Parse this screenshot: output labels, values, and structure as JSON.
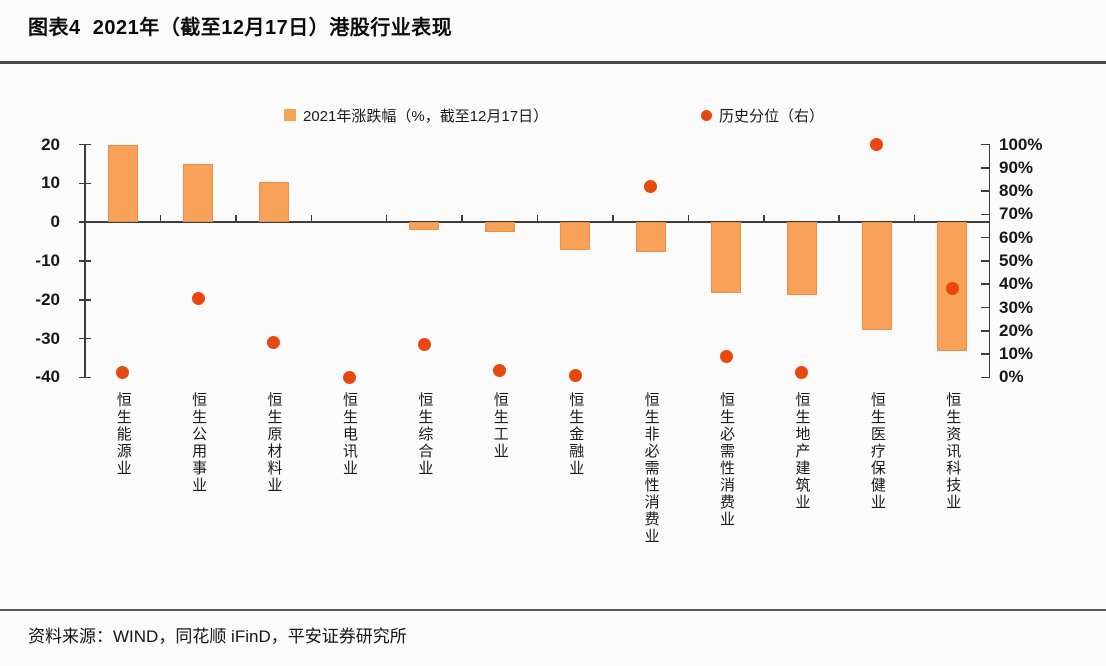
{
  "title": "图表4  2021年（截至12月17日）港股行业表现",
  "source": "资料来源：WIND，同花顺 iFinD，平安证券研究所",
  "chart_data": {
    "type": "bar",
    "subtype": "bar + scatter, dual y-axis",
    "title": "2021年（截至12月17日）港股行业表现",
    "categories": [
      "恒生能源业",
      "恒生公用事业",
      "恒生原材料业",
      "恒生电讯业",
      "恒生综合业",
      "恒生工业",
      "恒生金融业",
      "恒生非必需性消费业",
      "恒生必需性消费业",
      "恒生地产建筑业",
      "恒生医疗保健业",
      "恒生资讯科技业"
    ],
    "series": [
      {
        "name": "2021年涨跌幅（%，截至12月17日）",
        "type": "bar",
        "axis": "left",
        "values": [
          20,
          15,
          10.3,
          0,
          -2,
          -2.6,
          -7.2,
          -7.6,
          -18.2,
          -18.9,
          -27.7,
          -33.3
        ]
      },
      {
        "name": "历史分位（右）",
        "type": "scatter",
        "axis": "right",
        "values": [
          2,
          34,
          15,
          0,
          14,
          3,
          1,
          82,
          9,
          2,
          100,
          38
        ]
      }
    ],
    "left_axis": {
      "min": -40,
      "max": 20,
      "ticks": [
        20,
        10,
        0,
        -10,
        -20,
        -30,
        -40
      ]
    },
    "right_axis": {
      "min": 0,
      "max": 100,
      "ticks": [
        "100%",
        "90%",
        "80%",
        "70%",
        "60%",
        "50%",
        "40%",
        "30%",
        "20%",
        "10%",
        "0%"
      ]
    },
    "legend_position": "top",
    "grid": false,
    "colors": {
      "bar": "#f8a158",
      "bar_border": "#ee8c43",
      "dot": "#e8470d",
      "axis": "#3c3c3c"
    }
  }
}
